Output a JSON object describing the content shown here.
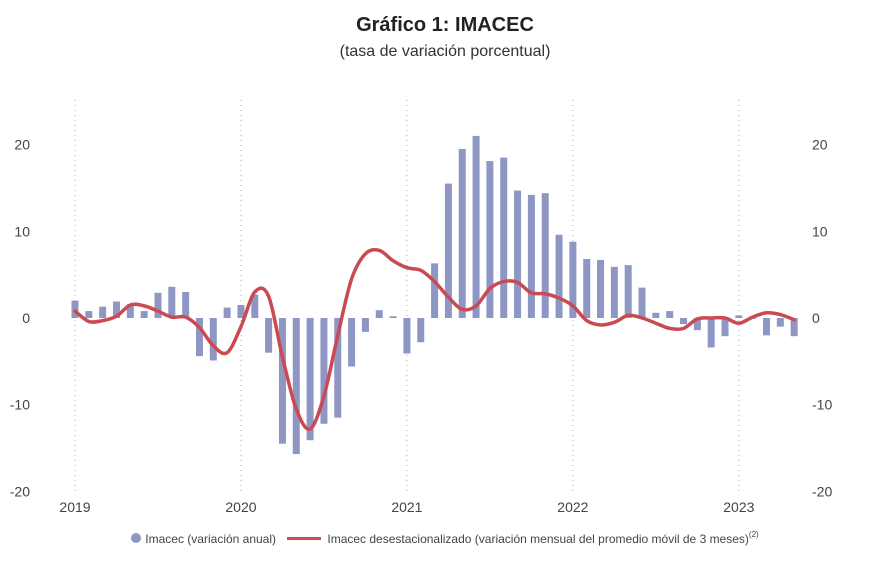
{
  "title": "Gráfico 1:  IMACEC",
  "subtitle": "(tasa de variación porcentual)",
  "legend": {
    "bars_label": "Imacec (variación anual)",
    "line_label": "Imacec desestacionalizado (variación mensual del promedio móvil de 3 meses)",
    "line_footnote": "(2)"
  },
  "colors": {
    "bars": "#8E97C4",
    "line": "#C94A53",
    "grid": "#b0b0b0"
  },
  "chart_data": {
    "type": "bar+line",
    "x_start": "2019-01",
    "x_labels": [
      "2019",
      "2020",
      "2021",
      "2022",
      "2023"
    ],
    "ylim": [
      -20,
      20
    ],
    "y_ticks": [
      -20,
      -10,
      0,
      10,
      20
    ],
    "series": [
      {
        "name": "Imacec (variación anual)",
        "type": "bar",
        "values": [
          2.0,
          0.8,
          1.3,
          1.9,
          1.6,
          0.8,
          2.9,
          3.6,
          3.0,
          -4.4,
          -4.9,
          1.2,
          1.5,
          2.7,
          -4.0,
          -14.5,
          -15.7,
          -14.1,
          -12.2,
          -11.5,
          -5.6,
          -1.6,
          0.9,
          0.2,
          -4.1,
          -2.8,
          6.3,
          15.5,
          19.5,
          21.0,
          18.1,
          18.5,
          14.7,
          14.2,
          14.4,
          9.6,
          8.8,
          6.8,
          6.7,
          5.9,
          6.1,
          3.5,
          0.6,
          0.8,
          -0.7,
          -1.4,
          -3.4,
          -2.1,
          0.3,
          0.0,
          -2.0,
          -1.0,
          -2.1
        ]
      },
      {
        "name": "Imacec desestacionalizado (variación mensual del promedio móvil de 3 meses)",
        "type": "line",
        "values": [
          0.8,
          -0.4,
          -0.3,
          0.2,
          1.5,
          1.4,
          0.8,
          0.1,
          0.1,
          -1.1,
          -3.2,
          -4.0,
          -1.0,
          3.0,
          2.5,
          -4.5,
          -10.5,
          -12.8,
          -9.0,
          -2.0,
          4.5,
          7.4,
          7.8,
          6.6,
          5.8,
          5.5,
          4.2,
          2.4,
          1.0,
          1.4,
          3.4,
          4.2,
          4.1,
          2.9,
          2.8,
          2.3,
          1.4,
          -0.3,
          -0.8,
          -0.5,
          0.3,
          0.0,
          -0.6,
          -1.2,
          -1.2,
          -0.1,
          0.0,
          0.0,
          -0.6,
          0.1,
          0.6,
          0.4,
          -0.2
        ]
      }
    ],
    "grid": "vertical dotted lines at each January",
    "legend_position": "bottom"
  }
}
